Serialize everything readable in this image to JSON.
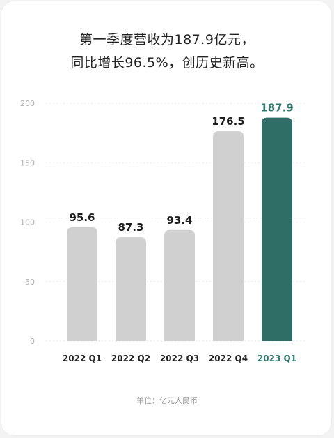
{
  "title_lines": [
    "第一季度营收为187.9亿元，",
    "同比增长96.5%，创历史新高。"
  ],
  "unit_label": "单位：亿元人民币",
  "colors": {
    "bar_default": "#d0d0d0",
    "bar_highlight": "#2e6e66",
    "label_default": "#1e1e1e",
    "label_highlight": "#2e7a6f",
    "grid": "#e4e4e4",
    "tick": "#b0b0b0"
  },
  "chart_data": {
    "type": "bar",
    "categories": [
      "2022 Q1",
      "2022 Q2",
      "2022 Q3",
      "2022 Q4",
      "2023 Q1"
    ],
    "values": [
      95.6,
      87.3,
      93.4,
      176.5,
      187.9
    ],
    "value_labels": [
      "95.6",
      "87.3",
      "93.4",
      "176.5",
      "187.9"
    ],
    "highlight_index": 4,
    "ylim": [
      0,
      200
    ],
    "yticks": [
      0,
      50,
      100,
      150,
      200
    ],
    "grid": true
  }
}
